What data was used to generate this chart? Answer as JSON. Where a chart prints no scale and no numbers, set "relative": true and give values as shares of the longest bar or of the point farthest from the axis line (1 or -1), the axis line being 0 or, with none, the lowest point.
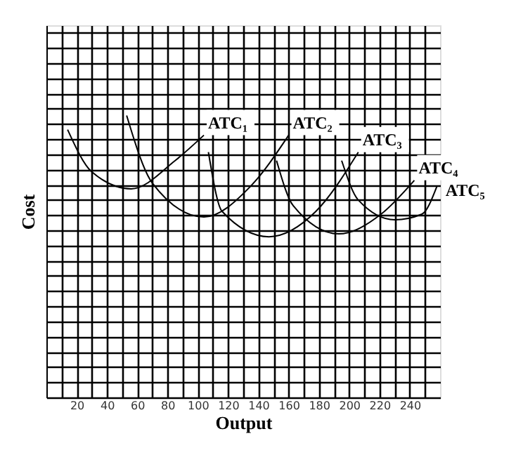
{
  "chart_data": {
    "type": "line",
    "xlabel": "Output",
    "ylabel": "Cost",
    "relative": true,
    "grid": true,
    "line_style": "solid",
    "tick_labels": "x",
    "xlim": [
      0,
      260
    ],
    "xticks": [
      {
        "value": 10,
        "label": null
      },
      20,
      {
        "value": 30,
        "label": null
      },
      40,
      {
        "value": 50,
        "label": null
      },
      60,
      {
        "value": 70,
        "label": null
      },
      80,
      {
        "value": 90,
        "label": null
      },
      100,
      {
        "value": 110,
        "label": null
      },
      120,
      {
        "value": 130,
        "label": null
      },
      140,
      {
        "value": 150,
        "label": null
      },
      160,
      {
        "value": 170,
        "label": null
      },
      180,
      {
        "value": 190,
        "label": null
      },
      200,
      {
        "value": 210,
        "label": null
      },
      220,
      {
        "value": 230,
        "label": null
      },
      240,
      {
        "value": 250,
        "label": null
      }
    ],
    "series": [
      {
        "name": "ATC₁",
        "color": "#000000",
        "x": [
          14,
          30,
          56,
          85,
          104
        ],
        "values": [
          0.95,
          0.8,
          0.74,
          0.84,
          0.93
        ]
      },
      {
        "name": "ATC₂",
        "color": "#000000",
        "x": [
          53,
          70,
          104,
          135,
          160
        ],
        "values": [
          1.0,
          0.76,
          0.64,
          0.75,
          0.93
        ]
      },
      {
        "name": "ATC₃",
        "color": "#000000",
        "x": [
          107,
          116,
          147,
          178,
          206
        ],
        "values": [
          0.87,
          0.66,
          0.57,
          0.66,
          0.87
        ]
      },
      {
        "name": "ATC₄",
        "color": "#000000",
        "x": [
          152,
          163,
          193,
          221,
          243
        ],
        "values": [
          0.84,
          0.68,
          0.58,
          0.65,
          0.77
        ]
      },
      {
        "name": "ATC₅",
        "color": "#000000",
        "x": [
          195,
          206,
          230,
          248,
          258
        ],
        "values": [
          0.84,
          0.7,
          0.63,
          0.65,
          0.75
        ]
      }
    ]
  }
}
